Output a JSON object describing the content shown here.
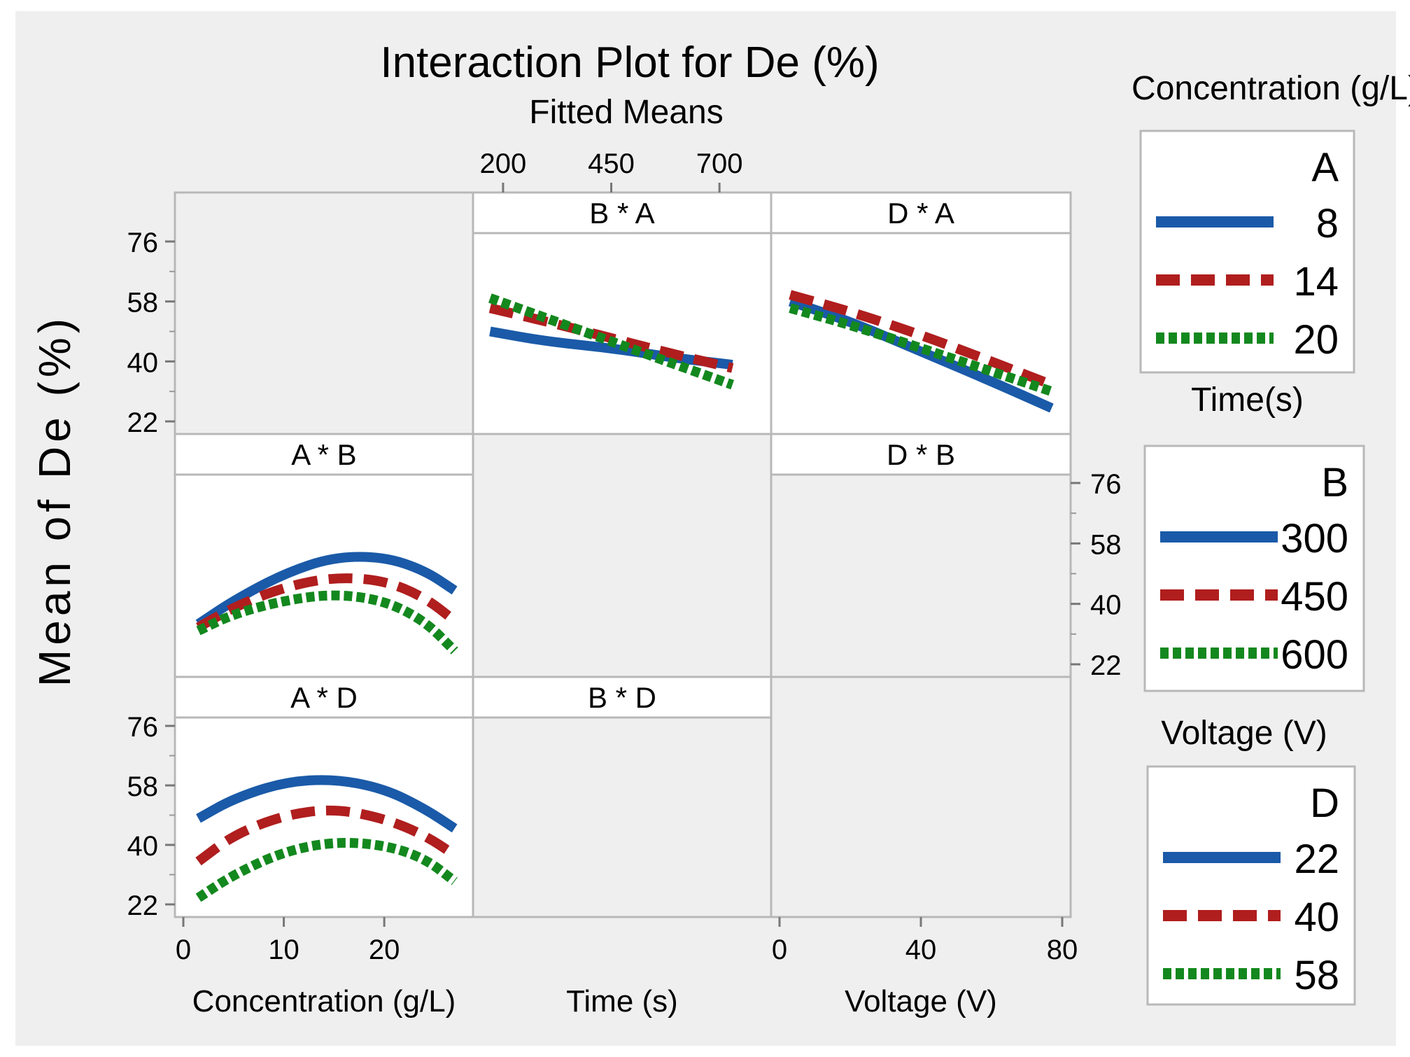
{
  "chart_data": {
    "type": "line",
    "title": "Interaction Plot for De (%)",
    "subtitle": "Fitted Means",
    "ylabel": "Mean of De (%)",
    "y_ticks": [
      76,
      58,
      40,
      22
    ],
    "ylim": [
      22,
      76
    ],
    "factors": {
      "A": {
        "name": "Concentration (g/L)",
        "axis_label": "Concentration (g/L)",
        "ticks": [
          0,
          10,
          20
        ],
        "range": [
          0,
          28
        ],
        "levels": [
          "8",
          "14",
          "20"
        ]
      },
      "B": {
        "name": "Time (s)",
        "legend_caption": "Time(s)",
        "axis_label": "Time (s)",
        "ticks": [
          200,
          450,
          700
        ],
        "range": [
          150,
          800
        ],
        "levels": [
          "300",
          "450",
          "600"
        ]
      },
      "D": {
        "name": "Voltage (V)",
        "axis_label": "Voltage (V)",
        "ticks": [
          0,
          40,
          80
        ],
        "range": [
          0,
          80
        ],
        "levels": [
          "22",
          "40",
          "58"
        ]
      }
    },
    "series_styles": [
      {
        "color": "#1a5aa8",
        "style": "solid"
      },
      {
        "color": "#b01e1e",
        "style": "dashed"
      },
      {
        "color": "#13881e",
        "style": "dotted"
      }
    ],
    "panels": [
      {
        "label": "B * A",
        "x_factor": "B",
        "trace_factor": "A",
        "x": [
          170,
          300,
          450,
          600,
          730
        ],
        "series": [
          {
            "name": "8",
            "values": [
              49,
              46,
              44,
              41,
              39
            ]
          },
          {
            "name": "14",
            "values": [
              56,
              52,
              47,
              42,
              38
            ]
          },
          {
            "name": "20",
            "values": [
              59,
              53,
              46,
              39,
              33
            ]
          }
        ]
      },
      {
        "label": "D * A",
        "x_factor": "D",
        "trace_factor": "A",
        "x": [
          3,
          20,
          40,
          60,
          77
        ],
        "series": [
          {
            "name": "8",
            "values": [
              58,
              52,
              43,
              34,
              26
            ]
          },
          {
            "name": "14",
            "values": [
              60,
              55,
              48,
              40,
              33
            ]
          },
          {
            "name": "20",
            "values": [
              56,
              51,
              44,
              37,
              31
            ]
          }
        ]
      },
      {
        "label": "A * B",
        "x_factor": "A",
        "trace_factor": "B",
        "x": [
          1.5,
          5,
          10,
          15,
          20,
          24,
          27
        ],
        "series": [
          {
            "name": "300",
            "values": [
              34,
              41,
              49,
              54,
              54,
              50,
              44
            ]
          },
          {
            "name": "450",
            "values": [
              33,
              39,
              45,
              48,
              47,
              42,
              35
            ]
          },
          {
            "name": "600",
            "values": [
              32,
              37,
              41,
              43,
              41,
              35,
              26
            ]
          }
        ]
      },
      {
        "label": "D * B",
        "x_factor": "D",
        "trace_factor": "B",
        "x": [],
        "series": []
      },
      {
        "label": "A * D",
        "x_factor": "A",
        "trace_factor": "D",
        "x": [
          1.5,
          5,
          10,
          15,
          20,
          24,
          27
        ],
        "series": [
          {
            "name": "22",
            "values": [
              48,
              54,
              59,
              60,
              57,
              51,
              45
            ]
          },
          {
            "name": "40",
            "values": [
              35,
              43,
              49,
              51,
              48,
              43,
              37
            ]
          },
          {
            "name": "58",
            "values": [
              24,
              31,
              38,
              41,
              40,
              36,
              29
            ]
          }
        ]
      },
      {
        "label": "B * D",
        "x_factor": "B",
        "trace_factor": "D",
        "x": [],
        "series": []
      }
    ],
    "legends": [
      {
        "caption": "Concentration (g/L)",
        "key": "A",
        "levels": [
          "8",
          "14",
          "20"
        ]
      },
      {
        "caption": "Time(s)",
        "key": "B",
        "levels": [
          "300",
          "450",
          "600"
        ]
      },
      {
        "caption": "Voltage (V)",
        "key": "D",
        "levels": [
          "22",
          "40",
          "58"
        ]
      }
    ],
    "x_axis_titles": [
      "Concentration (g/L)",
      "Time (s)",
      "Voltage (V)"
    ]
  }
}
